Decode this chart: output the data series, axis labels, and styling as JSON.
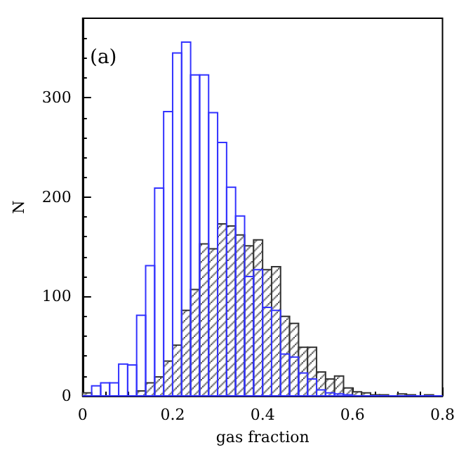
{
  "chart_data": {
    "type": "histogram",
    "xlabel": "gas fraction",
    "ylabel": "N",
    "annotations": [
      "(a)"
    ],
    "bins": [
      0,
      0.02,
      0.04,
      0.06,
      0.08,
      0.1,
      0.12,
      0.14,
      0.16,
      0.18,
      0.2,
      0.22,
      0.24,
      0.26,
      0.28,
      0.3,
      0.32,
      0.34,
      0.36,
      0.38,
      0.4,
      0.42,
      0.44,
      0.46,
      0.48,
      0.5,
      0.52,
      0.54,
      0.56,
      0.58,
      0.6,
      0.62,
      0.64,
      0.66,
      0.68,
      0.7,
      0.72,
      0.74,
      0.76,
      0.78,
      0.8
    ],
    "series": [
      {
        "color": "#333333",
        "values": [
          3,
          0,
          0,
          0,
          0,
          0,
          5,
          13,
          19,
          35,
          51,
          86,
          107,
          153,
          148,
          173,
          171,
          162,
          151,
          157,
          127,
          130,
          80,
          73,
          49,
          49,
          24,
          17,
          20,
          8,
          4,
          3,
          1,
          1,
          0,
          2,
          1,
          0,
          1,
          0
        ]
      },
      {
        "color": "#3333ff",
        "values": [
          0,
          10,
          13,
          13,
          32,
          31,
          81,
          131,
          209,
          286,
          345,
          356,
          323,
          323,
          285,
          255,
          210,
          181,
          120,
          127,
          89,
          86,
          42,
          39,
          23,
          17,
          6,
          3,
          2,
          1,
          0,
          0,
          0,
          0,
          0,
          0,
          0,
          0,
          0,
          0
        ]
      }
    ],
    "xlim": [
      0,
      0.8
    ],
    "xticks": [
      0,
      0.2,
      0.4,
      0.6,
      0.8
    ],
    "ylim": [
      0,
      380
    ],
    "yticks": [
      0,
      100,
      200,
      300
    ],
    "grid": false
  }
}
